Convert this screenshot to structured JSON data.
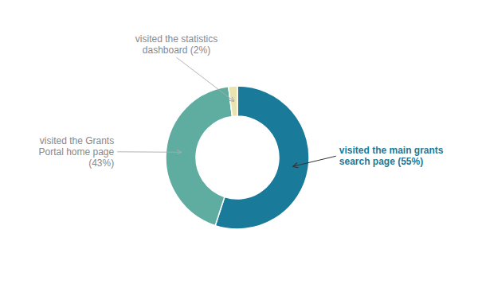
{
  "chart_data": {
    "type": "pie",
    "categories": [
      "visited the main grants\nsearch page (55%)",
      "visited the Grants\nPortal home page\n(43%)",
      "visited the statistics\ndashboard (2%)"
    ],
    "values": [
      55,
      43,
      2
    ],
    "colors": [
      "#1a7a9a",
      "#5fada0",
      "#e8e4b0"
    ]
  }
}
